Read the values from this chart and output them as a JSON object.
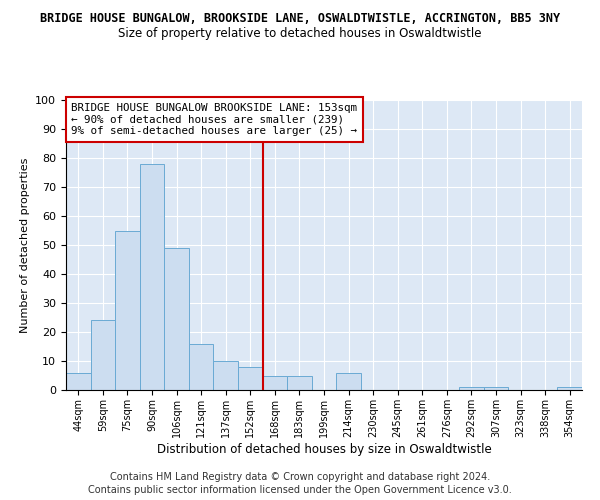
{
  "title": "BRIDGE HOUSE BUNGALOW, BROOKSIDE LANE, OSWALDTWISTLE, ACCRINGTON, BB5 3NY",
  "subtitle": "Size of property relative to detached houses in Oswaldtwistle",
  "xlabel": "Distribution of detached houses by size in Oswaldtwistle",
  "ylabel": "Number of detached properties",
  "footer_line1": "Contains HM Land Registry data © Crown copyright and database right 2024.",
  "footer_line2": "Contains public sector information licensed under the Open Government Licence v3.0.",
  "categories": [
    "44sqm",
    "59sqm",
    "75sqm",
    "90sqm",
    "106sqm",
    "121sqm",
    "137sqm",
    "152sqm",
    "168sqm",
    "183sqm",
    "199sqm",
    "214sqm",
    "230sqm",
    "245sqm",
    "261sqm",
    "276sqm",
    "292sqm",
    "307sqm",
    "323sqm",
    "338sqm",
    "354sqm"
  ],
  "values": [
    6,
    24,
    55,
    78,
    49,
    16,
    10,
    8,
    5,
    5,
    0,
    6,
    0,
    0,
    0,
    0,
    1,
    1,
    0,
    0,
    1
  ],
  "bar_color": "#ccddf0",
  "bar_edge_color": "#6aaad4",
  "property_line_index": 7.5,
  "property_line_color": "#cc0000",
  "annotation_title": "BRIDGE HOUSE BUNGALOW BROOKSIDE LANE: 153sqm",
  "annotation_line1": "← 90% of detached houses are smaller (239)",
  "annotation_line2": "9% of semi-detached houses are larger (25) →",
  "annotation_box_color": "#cc0000",
  "ylim": [
    0,
    100
  ],
  "background_color": "#dde8f5",
  "grid_color": "#ffffff",
  "fig_bg": "#ffffff"
}
